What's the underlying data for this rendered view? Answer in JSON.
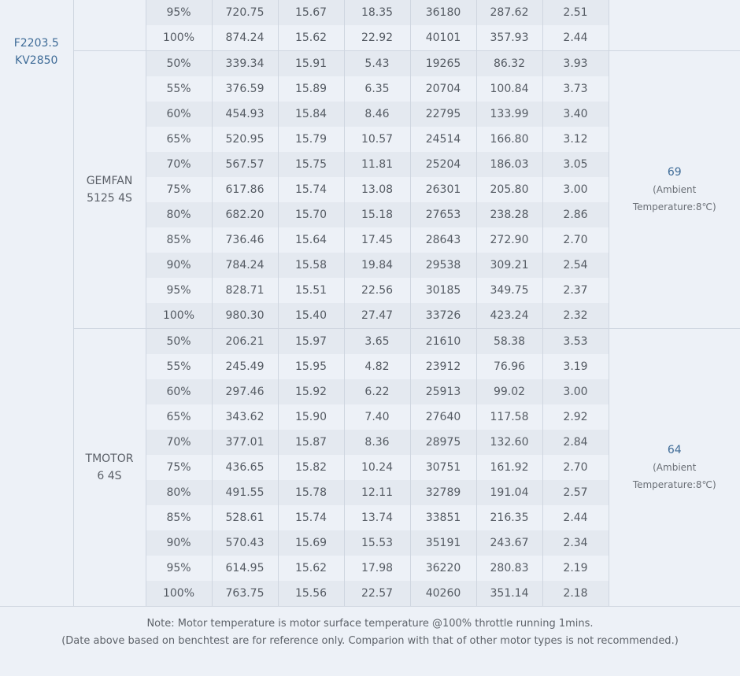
{
  "motor": {
    "name_line1": "F2203.5",
    "name_line2": "KV2850"
  },
  "groups": [
    {
      "prop_line1": "",
      "prop_line2": "",
      "temp_value": "",
      "temp_note_line1": "",
      "temp_note_line2": "",
      "rows": [
        [
          "95%",
          "720.75",
          "15.67",
          "18.35",
          "36180",
          "287.62",
          "2.51"
        ],
        [
          "100%",
          "874.24",
          "15.62",
          "22.92",
          "40101",
          "357.93",
          "2.44"
        ]
      ]
    },
    {
      "prop_line1": "GEMFAN",
      "prop_line2": "5125 4S",
      "temp_value": "69",
      "temp_note_line1": "(Ambient",
      "temp_note_line2": "Temperature:8℃)",
      "rows": [
        [
          "50%",
          "339.34",
          "15.91",
          "5.43",
          "19265",
          "86.32",
          "3.93"
        ],
        [
          "55%",
          "376.59",
          "15.89",
          "6.35",
          "20704",
          "100.84",
          "3.73"
        ],
        [
          "60%",
          "454.93",
          "15.84",
          "8.46",
          "22795",
          "133.99",
          "3.40"
        ],
        [
          "65%",
          "520.95",
          "15.79",
          "10.57",
          "24514",
          "166.80",
          "3.12"
        ],
        [
          "70%",
          "567.57",
          "15.75",
          "11.81",
          "25204",
          "186.03",
          "3.05"
        ],
        [
          "75%",
          "617.86",
          "15.74",
          "13.08",
          "26301",
          "205.80",
          "3.00"
        ],
        [
          "80%",
          "682.20",
          "15.70",
          "15.18",
          "27653",
          "238.28",
          "2.86"
        ],
        [
          "85%",
          "736.46",
          "15.64",
          "17.45",
          "28643",
          "272.90",
          "2.70"
        ],
        [
          "90%",
          "784.24",
          "15.58",
          "19.84",
          "29538",
          "309.21",
          "2.54"
        ],
        [
          "95%",
          "828.71",
          "15.51",
          "22.56",
          "30185",
          "349.75",
          "2.37"
        ],
        [
          "100%",
          "980.30",
          "15.40",
          "27.47",
          "33726",
          "423.24",
          "2.32"
        ]
      ]
    },
    {
      "prop_line1": "TMOTOR",
      "prop_line2": "6 4S",
      "temp_value": "64",
      "temp_note_line1": "(Ambient",
      "temp_note_line2": "Temperature:8℃)",
      "rows": [
        [
          "50%",
          "206.21",
          "15.97",
          "3.65",
          "21610",
          "58.38",
          "3.53"
        ],
        [
          "55%",
          "245.49",
          "15.95",
          "4.82",
          "23912",
          "76.96",
          "3.19"
        ],
        [
          "60%",
          "297.46",
          "15.92",
          "6.22",
          "25913",
          "99.02",
          "3.00"
        ],
        [
          "65%",
          "343.62",
          "15.90",
          "7.40",
          "27640",
          "117.58",
          "2.92"
        ],
        [
          "70%",
          "377.01",
          "15.87",
          "8.36",
          "28975",
          "132.60",
          "2.84"
        ],
        [
          "75%",
          "436.65",
          "15.82",
          "10.24",
          "30751",
          "161.92",
          "2.70"
        ],
        [
          "80%",
          "491.55",
          "15.78",
          "12.11",
          "32789",
          "191.04",
          "2.57"
        ],
        [
          "85%",
          "528.61",
          "15.74",
          "13.74",
          "33851",
          "216.35",
          "2.44"
        ],
        [
          "90%",
          "570.43",
          "15.69",
          "15.53",
          "35191",
          "243.67",
          "2.34"
        ],
        [
          "95%",
          "614.95",
          "15.62",
          "17.98",
          "36220",
          "280.83",
          "2.19"
        ],
        [
          "100%",
          "763.75",
          "15.56",
          "22.57",
          "40260",
          "351.14",
          "2.18"
        ]
      ]
    }
  ],
  "footer": {
    "note_line1": "Note: Motor temperature is motor surface temperature @100% throttle running 1mins.",
    "note_line2": "(Date above based on benchtest are for reference only. Comparion with that of other motor types is not recommended.)"
  }
}
